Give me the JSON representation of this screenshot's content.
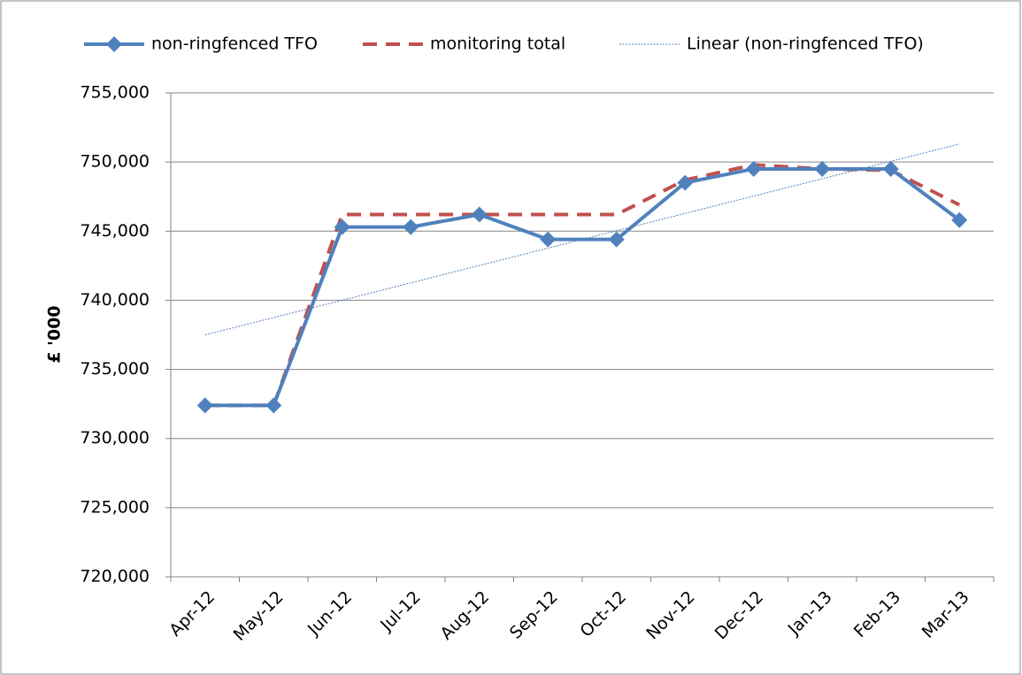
{
  "chart_data": {
    "type": "line",
    "y_axis_label": "£ '000",
    "categories": [
      "Apr-12",
      "May-12",
      "Jun-12",
      "Jul-12",
      "Aug-12",
      "Sep-12",
      "Oct-12",
      "Nov-12",
      "Dec-12",
      "Jan-13",
      "Feb-13",
      "Mar-13"
    ],
    "series": [
      {
        "name": "non-ringfenced TFO",
        "color": "#4f81bd",
        "style": "solid-marker",
        "values": [
          732400,
          732400,
          745300,
          745300,
          746200,
          744400,
          744400,
          748500,
          749500,
          749500,
          749500,
          745800
        ]
      },
      {
        "name": "monitoring total",
        "color": "#c0504d",
        "style": "dashed",
        "values": [
          732400,
          732400,
          746200,
          746200,
          746200,
          746200,
          746200,
          748700,
          749800,
          749500,
          749400,
          746900
        ]
      },
      {
        "name": "Linear (non-ringfenced TFO)",
        "color": "#4f81bd",
        "style": "dotted",
        "values": [
          737500,
          738750,
          740000,
          741260,
          742520,
          743770,
          745030,
          746280,
          747540,
          748790,
          750050,
          751300
        ]
      }
    ],
    "ylim": [
      720000,
      755000
    ],
    "yticks": [
      {
        "value": 720000,
        "label": "720,000"
      },
      {
        "value": 725000,
        "label": "725,000"
      },
      {
        "value": 730000,
        "label": "730,000"
      },
      {
        "value": 735000,
        "label": "735,000"
      },
      {
        "value": 740000,
        "label": "740,000"
      },
      {
        "value": 745000,
        "label": "745,000"
      },
      {
        "value": 750000,
        "label": "750,000"
      },
      {
        "value": 755000,
        "label": "755,000"
      }
    ],
    "grid": true,
    "legend": "top"
  }
}
